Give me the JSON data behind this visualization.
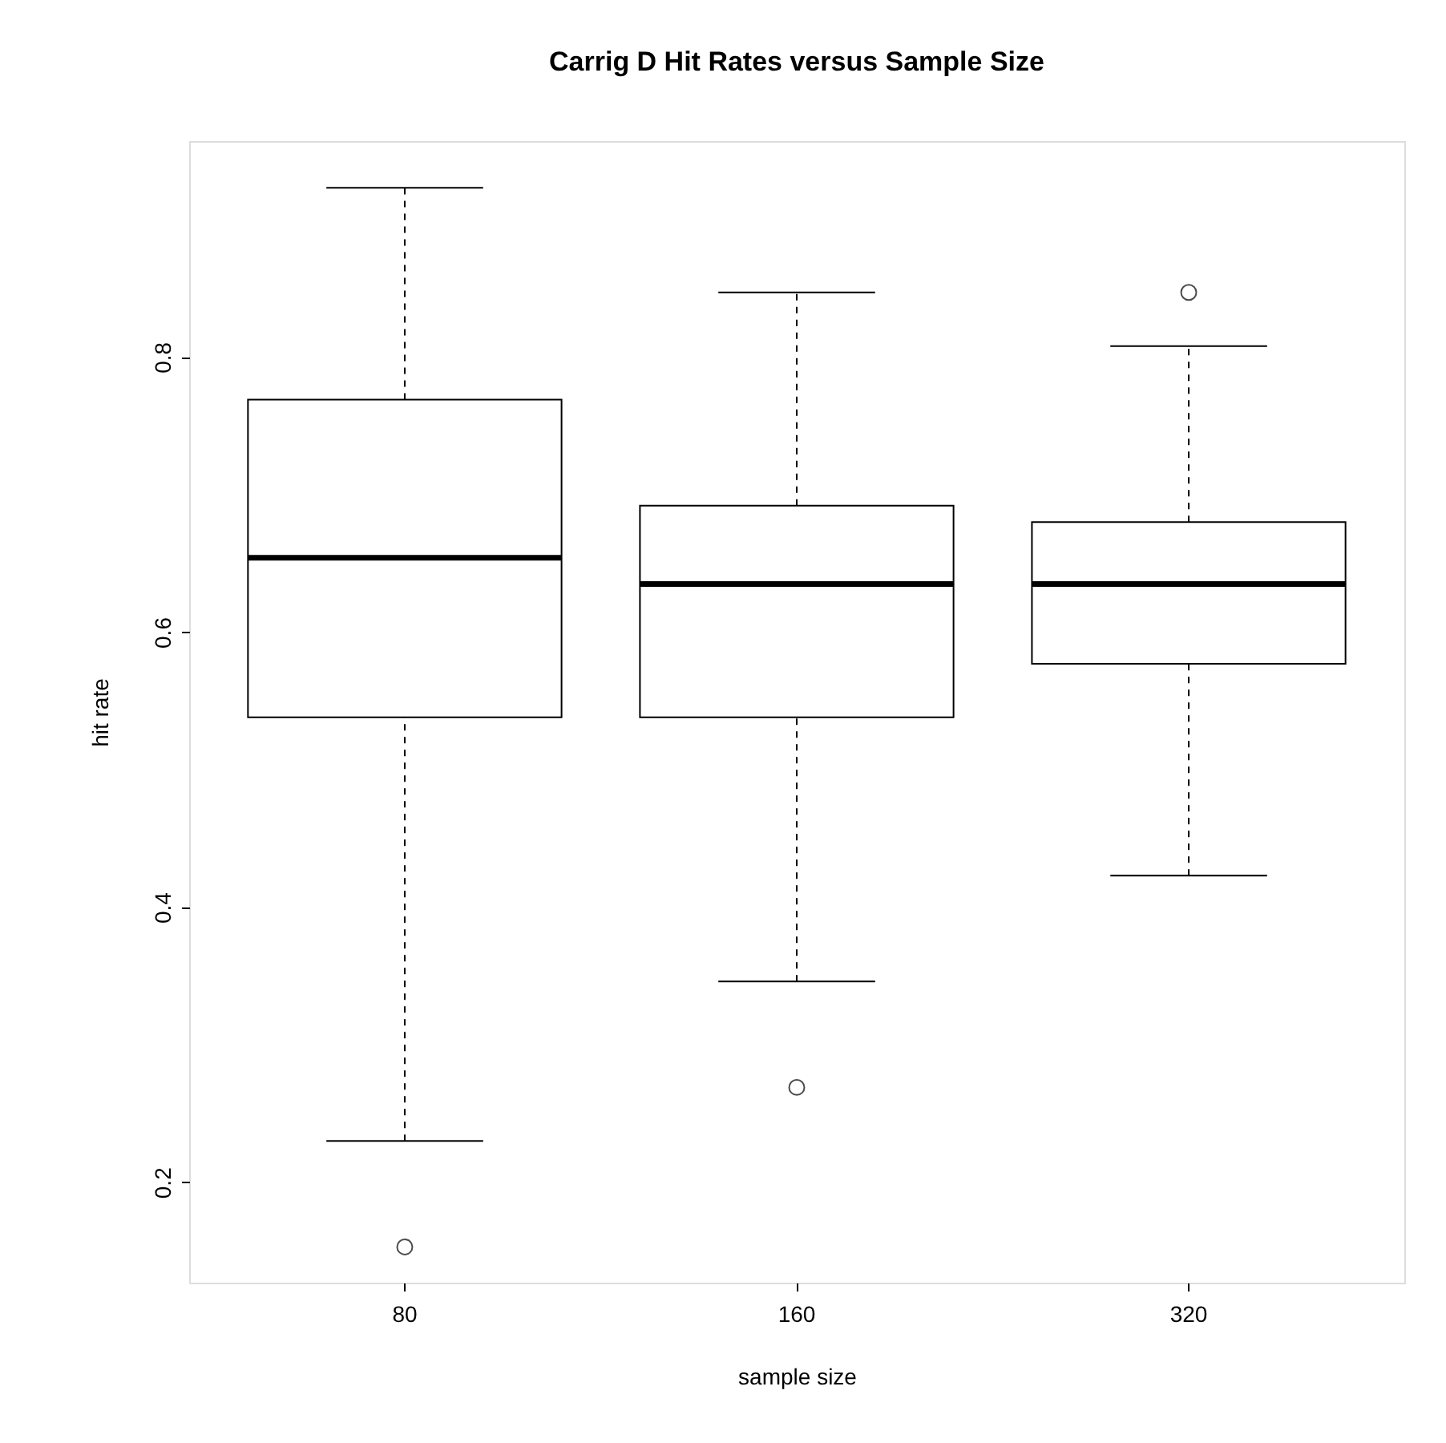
{
  "chart_data": {
    "type": "box",
    "title": "Carrig D Hit Rates versus Sample Size",
    "xlabel": "sample size",
    "ylabel": "hit rate",
    "categories": [
      "80",
      "160",
      "320"
    ],
    "boxes": [
      {
        "low": 0.23,
        "q1": 0.538,
        "median": 0.654,
        "q3": 0.769,
        "high": 0.923,
        "outliers": [
          0.153
        ]
      },
      {
        "low": 0.346,
        "q1": 0.538,
        "median": 0.635,
        "q3": 0.692,
        "high": 0.847,
        "outliers": [
          0.269
        ]
      },
      {
        "low": 0.423,
        "q1": 0.577,
        "median": 0.635,
        "q3": 0.68,
        "high": 0.808,
        "outliers": [
          0.847
        ]
      }
    ],
    "ylim": [
      0.127,
      0.957
    ],
    "yticks": [
      0.2,
      0.4,
      0.6,
      0.8
    ],
    "grid": false,
    "color": "#ffffff"
  }
}
